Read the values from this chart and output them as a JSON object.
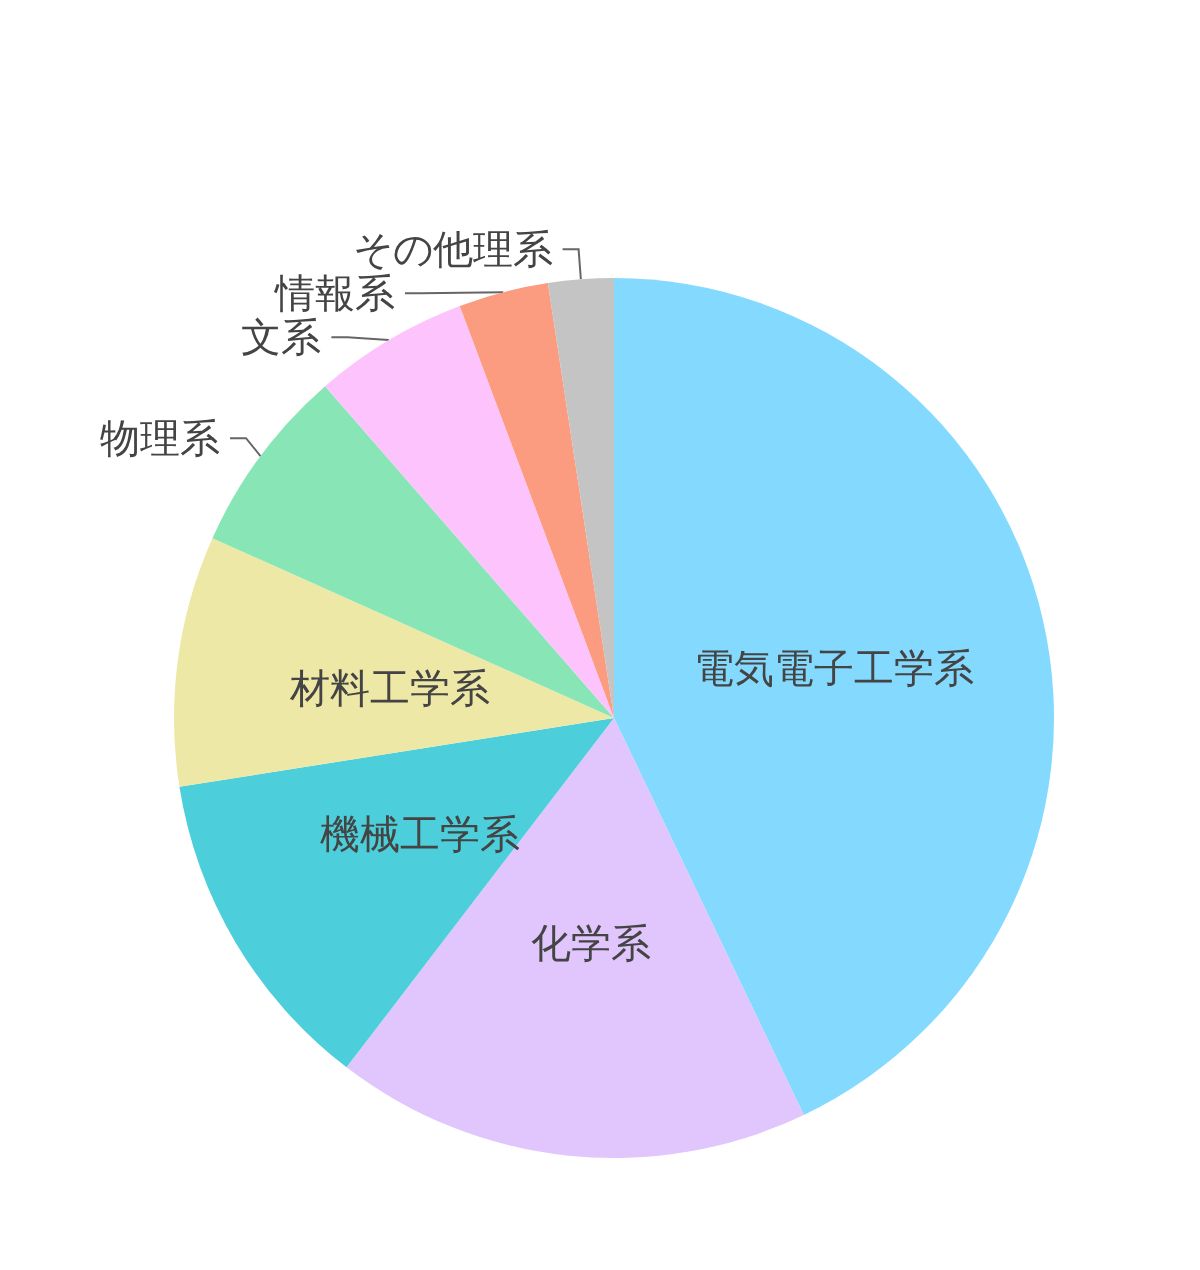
{
  "chart_data": {
    "type": "pie",
    "categories": [
      "電気電子工学系",
      "化学系",
      "機械工学系",
      "材料工学系",
      "物理系",
      "文系",
      "情報系",
      "その他理系"
    ],
    "values": [
      42.9,
      17.5,
      12.1,
      9.2,
      6.9,
      5.7,
      3.3,
      2.4
    ],
    "colors": [
      "#84dafe",
      "#e0c6fc",
      "#4ccfda",
      "#eee8a6",
      "#88e6b6",
      "#fdc3fd",
      "#fb9b7f",
      "#c4c4c4"
    ]
  }
}
